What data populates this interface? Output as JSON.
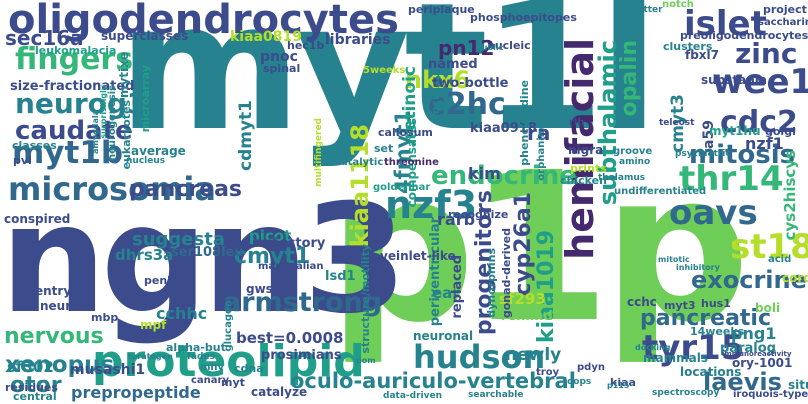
{
  "palette": {
    "dark_purple": "#45296f",
    "indigo": "#3b4b8c",
    "steel_blue": "#31688e",
    "teal_blue": "#26828e",
    "teal": "#1f9e89",
    "green": "#35b779",
    "light_green": "#6ece58",
    "lime": "#b5de2b"
  },
  "words": [
    {
      "text": "myt1l",
      "color": "teal"
    },
    {
      "text": "p1p",
      "color": "light_green"
    },
    {
      "text": "ngn3",
      "color": "indigo"
    },
    {
      "text": "oligodendrocytes",
      "color": "indigo"
    },
    {
      "text": "proteolipid",
      "color": "teal"
    },
    {
      "text": "hudson",
      "color": "teal_blue"
    },
    {
      "text": "microsomia",
      "color": "steel_blue"
    },
    {
      "text": "myt1b",
      "color": "steel_blue"
    },
    {
      "text": "hemifacial",
      "color": "dark_purple"
    },
    {
      "text": "nzf3",
      "color": "teal_blue"
    },
    {
      "text": "thr14",
      "color": "green"
    },
    {
      "text": "oavs",
      "color": "steel_blue"
    },
    {
      "text": "st18",
      "color": "lime"
    },
    {
      "text": "tyr15",
      "color": "indigo"
    },
    {
      "text": "endocrine",
      "color": "green"
    },
    {
      "text": "armstrong",
      "color": "steel_blue"
    },
    {
      "text": "mitosis",
      "color": "steel_blue"
    },
    {
      "text": "fingers",
      "color": "green"
    },
    {
      "text": "neurog3",
      "color": "teal_blue"
    },
    {
      "text": "pancreas",
      "color": "indigo"
    },
    {
      "text": "caudate",
      "color": "indigo"
    },
    {
      "text": "islet",
      "color": "indigo"
    },
    {
      "text": "wee1",
      "color": "indigo"
    },
    {
      "text": "zinc",
      "color": "indigo"
    },
    {
      "text": "c2hc",
      "color": "steel_blue"
    },
    {
      "text": "nkx6",
      "color": "lime"
    },
    {
      "text": "cdc2",
      "color": "indigo"
    },
    {
      "text": "subthalamic",
      "color": "teal"
    },
    {
      "text": "opalin",
      "color": "green"
    },
    {
      "text": "exocrine",
      "color": "steel_blue"
    },
    {
      "text": "pancreatic",
      "color": "steel_blue"
    },
    {
      "text": "laevis",
      "color": "steel_blue"
    },
    {
      "text": "oculo-auriculo-vertebral",
      "color": "teal_blue"
    },
    {
      "text": "xenopus",
      "color": "teal_blue"
    },
    {
      "text": "nervous",
      "color": "green"
    },
    {
      "text": "cmyt1",
      "color": "teal_blue"
    },
    {
      "text": "progenitors",
      "color": "indigo"
    },
    {
      "text": "cyp26a1",
      "color": "indigo"
    },
    {
      "text": "kiaa1019",
      "color": "teal"
    },
    {
      "text": "kiaa1118",
      "color": "lime"
    },
    {
      "text": "4fmyt1",
      "color": "teal_blue"
    },
    {
      "text": "retinoic",
      "color": "teal"
    },
    {
      "text": "sec16a",
      "color": "indigo"
    },
    {
      "text": "pn12",
      "color": "dark_purple"
    },
    {
      "text": "suggesta",
      "color": "teal_blue"
    },
    {
      "text": "prepropeptide",
      "color": "steel_blue"
    },
    {
      "text": "otor",
      "color": "teal_blue"
    },
    {
      "text": "kim",
      "color": "indigo"
    },
    {
      "text": "rarb",
      "color": "indigo"
    },
    {
      "text": "ra",
      "color": "indigo"
    },
    {
      "text": "cmyt3",
      "color": "teal_blue"
    },
    {
      "text": "nzf1",
      "color": "indigo"
    },
    {
      "text": "cys2hiscys",
      "color": "green"
    },
    {
      "text": "kiaa0819",
      "color": "lime"
    },
    {
      "text": "kiaa0918",
      "color": "indigo"
    },
    {
      "text": "libraries",
      "color": "indigo"
    },
    {
      "text": "named",
      "color": "indigo"
    },
    {
      "text": "cdmyt1",
      "color": "teal_blue"
    },
    {
      "text": "picot",
      "color": "teal"
    },
    {
      "text": "pancreas_dup",
      "color": "indigo"
    },
    {
      "text": "ser108leu",
      "color": "steel_blue"
    },
    {
      "text": "dhrs3a",
      "color": "teal_blue"
    },
    {
      "text": "cchhc",
      "color": "teal_blue"
    },
    {
      "text": "newly",
      "color": "teal_blue"
    },
    {
      "text": "png1",
      "color": "teal_blue"
    },
    {
      "text": "sf302",
      "color": "teal_blue"
    },
    {
      "text": "musashi1",
      "color": "indigo"
    },
    {
      "text": "best=0.0008",
      "color": "indigo"
    },
    {
      "text": "leukomalacia",
      "color": "teal"
    },
    {
      "text": "size-fractionated",
      "color": "indigo"
    },
    {
      "text": "superclasses",
      "color": "indigo"
    },
    {
      "text": "pnoc",
      "color": "indigo"
    },
    {
      "text": "two-bottle",
      "color": "indigo"
    },
    {
      "text": "sf293",
      "color": "lime"
    },
    {
      "text": "remind",
      "color": "light_green"
    },
    {
      "text": "cchc",
      "color": "indigo"
    },
    {
      "text": "ear",
      "color": "teal_blue"
    },
    {
      "text": "replaced",
      "color": "indigo"
    },
    {
      "text": "gonad-derived",
      "color": "indigo"
    },
    {
      "text": "dynorphins",
      "color": "teal_blue"
    },
    {
      "text": "periventricular",
      "color": "teal_blue"
    },
    {
      "text": "structure/motility",
      "color": "teal_blue"
    },
    {
      "text": "lsd1",
      "color": "teal_blue"
    },
    {
      "text": "trajectory",
      "color": "indigo"
    },
    {
      "text": "prosimians",
      "color": "indigo"
    },
    {
      "text": "veinlet-like",
      "color": "indigo"
    },
    {
      "text": "recognize",
      "color": "indigo"
    },
    {
      "text": "neuronal",
      "color": "teal_blue"
    },
    {
      "text": "14weeks",
      "color": "teal_blue"
    },
    {
      "text": "paralog",
      "color": "teal_blue"
    },
    {
      "text": "mammals",
      "color": "teal_blue"
    },
    {
      "text": "ory-1001",
      "color": "indigo"
    },
    {
      "text": "locations",
      "color": "teal_blue"
    },
    {
      "text": "situ",
      "color": "teal_blue"
    },
    {
      "text": "kiaa",
      "color": "indigo"
    },
    {
      "text": "myt3",
      "color": "indigo"
    },
    {
      "text": "boli",
      "color": "light_green"
    },
    {
      "text": "cord",
      "color": "lime"
    },
    {
      "text": "hus1",
      "color": "indigo"
    },
    {
      "text": "a59",
      "color": "indigo"
    },
    {
      "text": "myt1hu",
      "color": "teal"
    },
    {
      "text": "golgi",
      "color": "indigo"
    },
    {
      "text": "fbxl7",
      "color": "indigo"
    },
    {
      "text": "substania",
      "color": "indigo"
    },
    {
      "text": "clusters",
      "color": "teal_blue"
    },
    {
      "text": "preoligodendrocytes",
      "color": "indigo"
    },
    {
      "text": "saccharin",
      "color": "indigo"
    },
    {
      "text": "project",
      "color": "indigo"
    },
    {
      "text": "notch",
      "color": "light_green"
    },
    {
      "text": "matter",
      "color": "teal_blue"
    },
    {
      "text": "periplaque",
      "color": "indigo"
    },
    {
      "text": "phosphoepitopes",
      "color": "indigo"
    },
    {
      "text": "nucleic",
      "color": "indigo"
    },
    {
      "text": "public",
      "color": "teal_blue"
    },
    {
      "text": "hec1b",
      "color": "indigo"
    },
    {
      "text": "spinal",
      "color": "indigo"
    },
    {
      "text": "finch",
      "color": "teal_blue"
    },
    {
      "text": "compensates",
      "color": "teal"
    },
    {
      "text": "callosum",
      "color": "indigo"
    },
    {
      "text": "phencyclidine",
      "color": "teal_blue"
    },
    {
      "text": "orphanin/nociceptin",
      "color": "teal_blue"
    },
    {
      "text": "rlh",
      "color": "indigo"
    },
    {
      "text": "teleost",
      "color": "indigo"
    },
    {
      "text": "nigra",
      "color": "indigo"
    },
    {
      "text": "groove",
      "color": "teal_blue"
    },
    {
      "text": "amino",
      "color": "teal_blue"
    },
    {
      "text": "thalamus",
      "color": "teal_blue"
    },
    {
      "text": "undifferentiated",
      "color": "teal_blue"
    },
    {
      "text": "psychiatric",
      "color": "teal_blue"
    },
    {
      "text": "prints",
      "color": "lime"
    },
    {
      "text": "chicken",
      "color": "teal_blue"
    },
    {
      "text": "goldenhar",
      "color": "teal"
    },
    {
      "text": "threonine",
      "color": "dark_purple"
    },
    {
      "text": "catalytic",
      "color": "teal_blue"
    },
    {
      "text": "average",
      "color": "teal_blue"
    },
    {
      "text": "nucleus",
      "color": "teal_blue"
    },
    {
      "text": "classes",
      "color": "teal_blue"
    },
    {
      "text": "pvl",
      "color": "indigo"
    },
    {
      "text": "conspired",
      "color": "indigo"
    },
    {
      "text": "entry",
      "color": "indigo"
    },
    {
      "text": "neural",
      "color": "indigo"
    },
    {
      "text": "mbp",
      "color": "indigo"
    },
    {
      "text": "mpf",
      "color": "lime"
    },
    {
      "text": "residues",
      "color": "indigo"
    },
    {
      "text": "central",
      "color": "teal_blue"
    },
    {
      "text": "canary",
      "color": "indigo"
    },
    {
      "text": "myt",
      "color": "indigo"
    },
    {
      "text": "catalyze",
      "color": "indigo"
    },
    {
      "text": "cdna",
      "color": "teal_blue"
    },
    {
      "text": "mhv",
      "color": "teal_blue"
    },
    {
      "text": "alpha-but",
      "color": "teal_blue"
    },
    {
      "text": "glucagon",
      "color": "teal_blue"
    },
    {
      "text": "gws",
      "color": "indigo"
    },
    {
      "text": "penk",
      "color": "indigo"
    },
    {
      "text": "mammalian",
      "color": "indigo"
    },
    {
      "text": "mitotic",
      "color": "teal_blue"
    },
    {
      "text": "acid",
      "color": "teal_blue"
    },
    {
      "text": "inhibitory",
      "color": "teal_blue"
    },
    {
      "text": "docking",
      "color": "teal_blue"
    },
    {
      "text": "immunoreactivity",
      "color": "indigo"
    },
    {
      "text": "pdyn",
      "color": "indigo"
    },
    {
      "text": "troy",
      "color": "indigo"
    },
    {
      "text": "p115",
      "color": "teal_blue"
    },
    {
      "text": "loops",
      "color": "teal_blue"
    },
    {
      "text": "searchable",
      "color": "teal_blue"
    },
    {
      "text": "data-driven",
      "color": "teal_blue"
    },
    {
      "text": "spectroscopy",
      "color": "teal_blue"
    },
    {
      "text": "iroquois-type",
      "color": "indigo"
    },
    {
      "text": "pom",
      "color": "teal_blue"
    },
    {
      "text": "fades",
      "color": "teal_blue"
    },
    {
      "text": "teratogen",
      "color": "teal_blue"
    },
    {
      "text": "5weeks",
      "color": "lime"
    },
    {
      "text": "neurogenesis",
      "color": "teal_blue"
    },
    {
      "text": "eukaryotes",
      "color": "teal_blue"
    },
    {
      "text": "microarray",
      "color": "teal"
    },
    {
      "text": "surprisingly",
      "color": "teal"
    },
    {
      "text": "amygdala",
      "color": "teal_blue"
    },
    {
      "text": "mytixe",
      "color": "teal_blue"
    },
    {
      "text": "multifingered",
      "color": "lime"
    },
    {
      "text": "set",
      "color": "teal_blue"
    },
    {
      "text": "mfng",
      "color": "teal_blue"
    },
    {
      "text": "public_dup",
      "color": "teal_blue"
    }
  ]
}
